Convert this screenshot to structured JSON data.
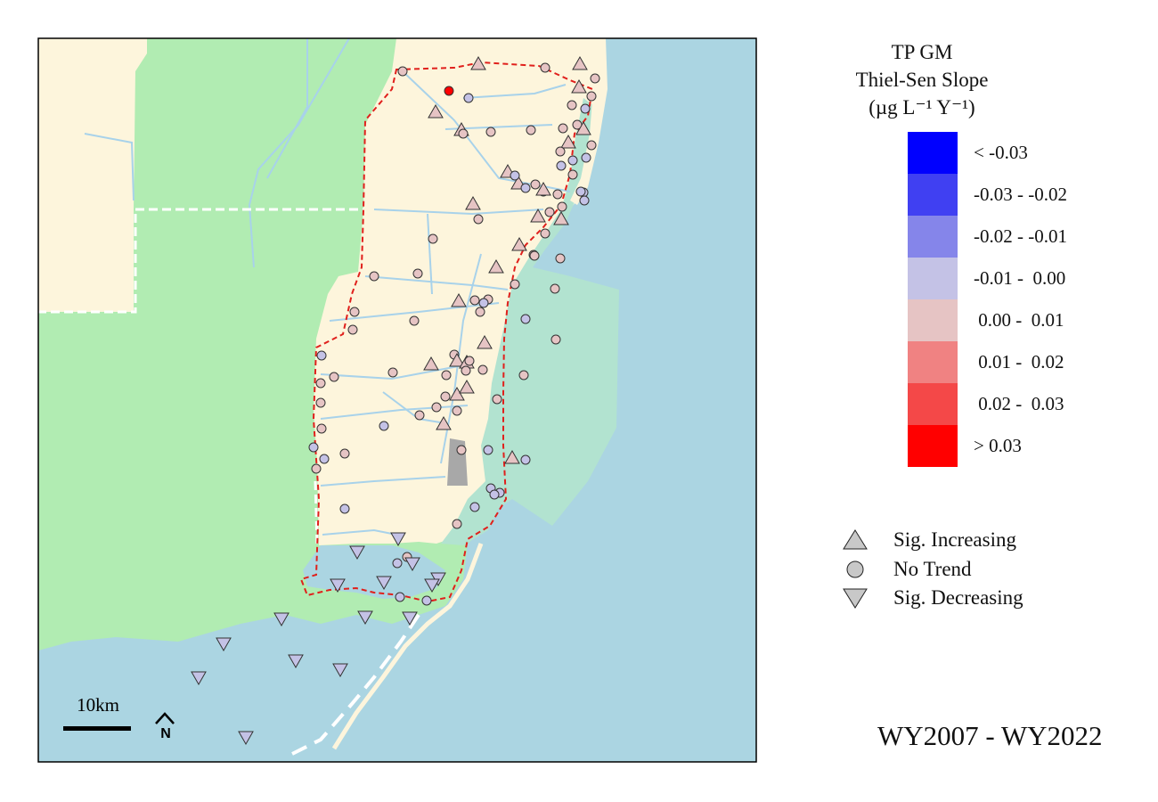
{
  "legend": {
    "title_lines": [
      "TP GM",
      "Thiel-Sen Slope",
      "(µg L⁻¹ Y⁻¹)"
    ],
    "classes": [
      {
        "label": "< -0.03",
        "color": "#0000ff"
      },
      {
        "label": "-0.03 - -0.02",
        "color": "#4040f2"
      },
      {
        "label": "-0.02 - -0.01",
        "color": "#8585ea"
      },
      {
        "label": "-0.01 -  0.00",
        "color": "#c4c2e6"
      },
      {
        "label": " 0.00 -  0.01",
        "color": "#e6c4c4"
      },
      {
        "label": " 0.01 -  0.02",
        "color": "#f08282"
      },
      {
        "label": " 0.02 -  0.03",
        "color": "#f44848"
      },
      {
        "label": "> 0.03",
        "color": "#ff0000"
      }
    ],
    "symbols": [
      {
        "shape": "triangle-up",
        "label": "Sig. Increasing"
      },
      {
        "shape": "circle",
        "label": "No Trend"
      },
      {
        "shape": "triangle-down",
        "label": "Sig. Decreasing"
      }
    ]
  },
  "scale_bar_label": "10km",
  "north_arrow_label": "N",
  "period_label": "WY2007 - WY2022",
  "colors": {
    "water": "#abd5e2",
    "land": "#fdf5dc",
    "park": "#b1ecb2",
    "estuary": "#b2e3d0",
    "canal": "#a8d2ea",
    "boundary": "#e0201c",
    "urban_gray": "#a8a8a8"
  },
  "sites": [
    {
      "shape": "circle",
      "cls": 4
    },
    {
      "shape": "triangle-up",
      "cls": 4
    },
    {
      "shape": "circle",
      "cls": 4
    },
    {
      "shape": "triangle-up",
      "cls": 4
    },
    {
      "shape": "circle",
      "cls": 4
    },
    {
      "shape": "triangle-up",
      "cls": 4
    },
    {
      "shape": "circle",
      "cls": 7
    },
    {
      "shape": "circle",
      "cls": 3
    },
    {
      "shape": "triangle-up",
      "cls": 4
    },
    {
      "shape": "triangle-up",
      "cls": 4
    },
    {
      "shape": "circle",
      "cls": 4
    },
    {
      "shape": "circle",
      "cls": 4
    },
    {
      "shape": "circle",
      "cls": 4
    },
    {
      "shape": "circle",
      "cls": 4
    },
    {
      "shape": "circle",
      "cls": 3
    },
    {
      "shape": "circle",
      "cls": 4
    },
    {
      "shape": "triangle-up",
      "cls": 4
    },
    {
      "shape": "triangle-up",
      "cls": 4
    },
    {
      "shape": "circle",
      "cls": 3
    },
    {
      "shape": "circle",
      "cls": 3
    },
    {
      "shape": "circle",
      "cls": 4
    },
    {
      "shape": "circle",
      "cls": 4
    },
    {
      "shape": "triangle-up",
      "cls": 4
    },
    {
      "shape": "circle",
      "cls": 4
    },
    {
      "shape": "circle",
      "cls": 3
    },
    {
      "shape": "circle",
      "cls": 4
    },
    {
      "shape": "triangle-up",
      "cls": 4
    },
    {
      "shape": "circle",
      "cls": 3
    },
    {
      "shape": "circle",
      "cls": 4
    },
    {
      "shape": "circle",
      "cls": 4
    },
    {
      "shape": "triangle-up",
      "cls": 4
    },
    {
      "shape": "circle",
      "cls": 4
    },
    {
      "shape": "circle",
      "cls": 4
    },
    {
      "shape": "circle",
      "cls": 3
    },
    {
      "shape": "circle",
      "cls": 3
    },
    {
      "shape": "circle",
      "cls": 3
    },
    {
      "shape": "circle",
      "cls": 4
    },
    {
      "shape": "circle",
      "cls": 4
    },
    {
      "shape": "triangle-up",
      "cls": 4
    },
    {
      "shape": "circle",
      "cls": 4
    },
    {
      "shape": "circle",
      "cls": 4
    },
    {
      "shape": "circle",
      "cls": 4
    },
    {
      "shape": "triangle-up",
      "cls": 4
    },
    {
      "shape": "circle",
      "cls": 4
    },
    {
      "shape": "circle",
      "cls": 4
    },
    {
      "shape": "triangle-up",
      "cls": 4
    },
    {
      "shape": "circle",
      "cls": 4
    },
    {
      "shape": "circle",
      "cls": 4
    },
    {
      "shape": "circle",
      "cls": 4
    },
    {
      "shape": "circle",
      "cls": 4
    },
    {
      "shape": "triangle-up",
      "cls": 4
    },
    {
      "shape": "circle",
      "cls": 4
    },
    {
      "shape": "circle",
      "cls": 4
    },
    {
      "shape": "circle",
      "cls": 4
    },
    {
      "shape": "circle",
      "cls": 3
    },
    {
      "shape": "triangle-up",
      "cls": 4
    },
    {
      "shape": "circle",
      "cls": 4
    },
    {
      "shape": "circle",
      "cls": 4
    },
    {
      "shape": "circle",
      "cls": 4
    },
    {
      "shape": "circle",
      "cls": 3
    },
    {
      "shape": "circle",
      "cls": 4
    },
    {
      "shape": "circle",
      "cls": 4
    },
    {
      "shape": "triangle-up",
      "cls": 4
    },
    {
      "shape": "circle",
      "cls": 4
    },
    {
      "shape": "circle",
      "cls": 4
    },
    {
      "shape": "triangle-up",
      "cls": 4
    },
    {
      "shape": "triangle-up",
      "cls": 4
    },
    {
      "shape": "circle",
      "cls": 4
    },
    {
      "shape": "circle",
      "cls": 4
    },
    {
      "shape": "circle",
      "cls": 4
    },
    {
      "shape": "circle",
      "cls": 4
    },
    {
      "shape": "triangle-up",
      "cls": 4
    },
    {
      "shape": "triangle-up",
      "cls": 4
    },
    {
      "shape": "circle",
      "cls": 4
    },
    {
      "shape": "circle",
      "cls": 4
    },
    {
      "shape": "circle",
      "cls": 4
    },
    {
      "shape": "circle",
      "cls": 4
    },
    {
      "shape": "triangle-up",
      "cls": 4
    },
    {
      "shape": "circle",
      "cls": 3
    },
    {
      "shape": "circle",
      "cls": 4
    },
    {
      "shape": "circle",
      "cls": 3
    },
    {
      "shape": "circle",
      "cls": 4
    },
    {
      "shape": "circle",
      "cls": 4
    },
    {
      "shape": "circle",
      "cls": 4
    },
    {
      "shape": "circle",
      "cls": 4
    },
    {
      "shape": "circle",
      "cls": 3
    },
    {
      "shape": "circle",
      "cls": 3
    },
    {
      "shape": "circle",
      "cls": 4
    },
    {
      "shape": "circle",
      "cls": 4
    },
    {
      "shape": "circle",
      "cls": 3
    },
    {
      "shape": "triangle-down",
      "cls": 3
    },
    {
      "shape": "circle",
      "cls": 4
    },
    {
      "shape": "circle",
      "cls": 3
    },
    {
      "shape": "circle",
      "cls": 3
    },
    {
      "shape": "triangle-up",
      "cls": 4
    },
    {
      "shape": "circle",
      "cls": 3
    },
    {
      "shape": "triangle-down",
      "cls": 3
    },
    {
      "shape": "circle",
      "cls": 3
    },
    {
      "shape": "circle",
      "cls": 4
    },
    {
      "shape": "triangle-down",
      "cls": 3
    },
    {
      "shape": "triangle-down",
      "cls": 3
    },
    {
      "shape": "triangle-down",
      "cls": 3
    },
    {
      "shape": "triangle-down",
      "cls": 3
    },
    {
      "shape": "circle",
      "cls": 3
    },
    {
      "shape": "triangle-down",
      "cls": 3
    },
    {
      "shape": "triangle-down",
      "cls": 3
    },
    {
      "shape": "triangle-down",
      "cls": 3
    },
    {
      "shape": "triangle-down",
      "cls": 3
    },
    {
      "shape": "triangle-down",
      "cls": 3
    },
    {
      "shape": "triangle-down",
      "cls": 3
    },
    {
      "shape": "triangle-down",
      "cls": 3
    },
    {
      "shape": "triangle-down",
      "cls": 3
    },
    {
      "shape": "triangle-down",
      "cls": 3
    },
    {
      "shape": "circle",
      "cls": 3
    },
    {
      "shape": "circle",
      "cls": 4
    },
    {
      "shape": "circle",
      "cls": 3
    },
    {
      "shape": "circle",
      "cls": 3
    },
    {
      "shape": "circle",
      "cls": 3
    },
    {
      "shape": "triangle-up",
      "cls": 4
    },
    {
      "shape": "triangle-up",
      "cls": 4
    },
    {
      "shape": "circle",
      "cls": 3
    },
    {
      "shape": "circle",
      "cls": 4
    }
  ]
}
